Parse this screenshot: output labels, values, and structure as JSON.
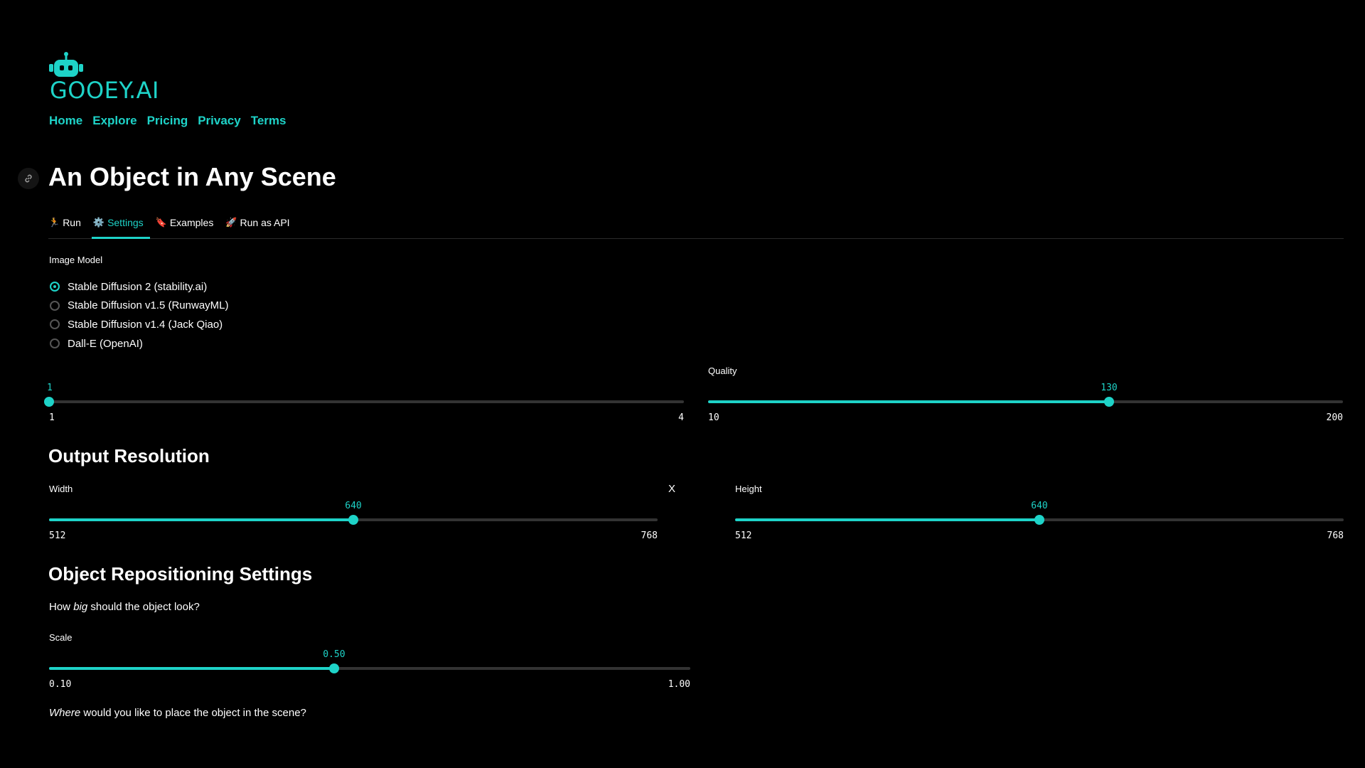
{
  "brand": {
    "logo_text": "GOOEY.AI",
    "accent": "#1ed3c8"
  },
  "nav": [
    "Home",
    "Explore",
    "Pricing",
    "Privacy",
    "Terms"
  ],
  "page": {
    "title": "An Object in Any Scene"
  },
  "tabs": [
    {
      "label": "Run",
      "icon": "runner-icon",
      "glyph": "🏃"
    },
    {
      "label": "Settings",
      "icon": "gear-icon",
      "glyph": "⚙️",
      "active": true
    },
    {
      "label": "Examples",
      "icon": "bookmark-icon",
      "glyph": "🔖"
    },
    {
      "label": "Run as API",
      "icon": "rocket-icon",
      "glyph": "🚀"
    }
  ],
  "image_model": {
    "label": "Image Model",
    "options": [
      "Stable Diffusion 2 (stability.ai)",
      "Stable Diffusion v1.5 (RunwayML)",
      "Stable Diffusion v1.4 (Jack Qiao)",
      "Dall-E (OpenAI)"
    ],
    "selected": 0
  },
  "num_outputs": {
    "value": "1",
    "min": "1",
    "max": "4"
  },
  "quality": {
    "label": "Quality",
    "value": "130",
    "min": "10",
    "max": "200"
  },
  "output_resolution": {
    "heading": "Output Resolution",
    "width": {
      "label": "Width",
      "value": "640",
      "min": "512",
      "max": "768"
    },
    "separator": "X",
    "height": {
      "label": "Height",
      "value": "640",
      "min": "512",
      "max": "768"
    }
  },
  "repositioning": {
    "heading": "Object Repositioning Settings",
    "size_question": {
      "before": "How ",
      "em": "big",
      "after": " should the object look?"
    },
    "scale": {
      "label": "Scale",
      "value": "0.50",
      "min": "0.10",
      "max": "1.00"
    },
    "place_question": {
      "em": "Where",
      "after": " would you like to place the object in the scene?"
    }
  }
}
